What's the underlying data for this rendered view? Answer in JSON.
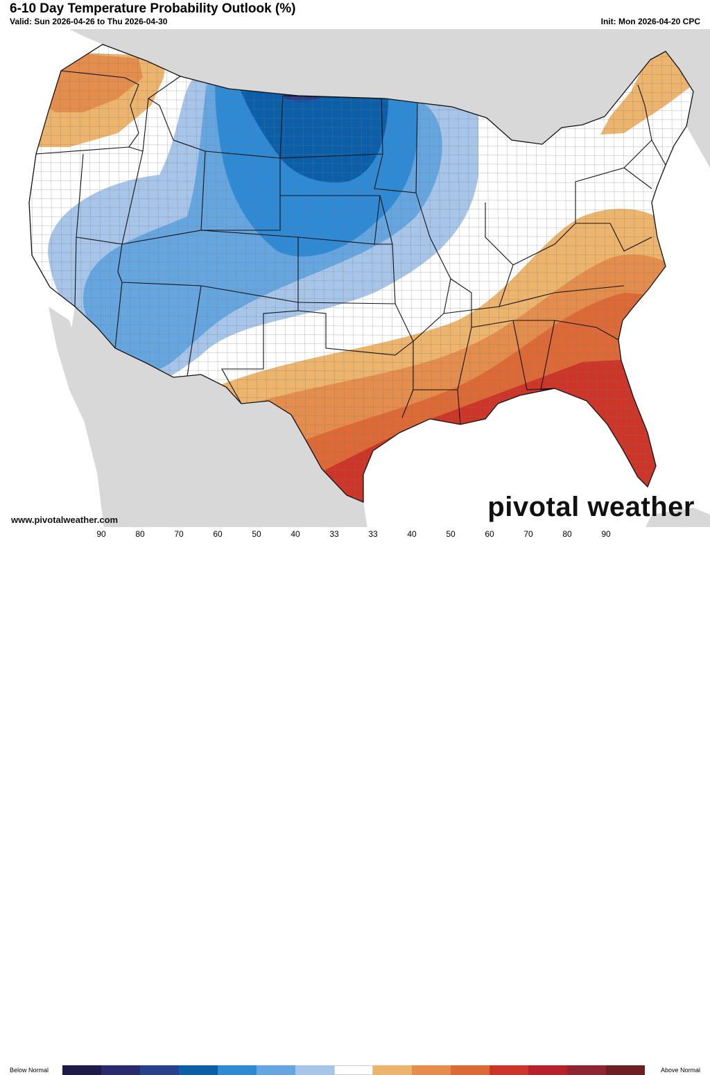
{
  "header": {
    "title": "6-10 Day Temperature Probability Outlook (%)",
    "valid": "Valid: Sun 2026-04-26 to Thu 2026-04-30",
    "init": "Init: Mon 2026-04-20 CPC"
  },
  "footer": {
    "website": "www.pivotalweather.com",
    "brand": "pivotal weather"
  },
  "legend": {
    "left_label": "Below Normal",
    "right_label": "Above Normal",
    "ticks": [
      "90",
      "80",
      "70",
      "60",
      "50",
      "40",
      "33",
      "33",
      "40",
      "50",
      "60",
      "70",
      "80",
      "90"
    ],
    "colors": [
      "#1e1a4a",
      "#2a2a70",
      "#27418c",
      "#0a5fa8",
      "#2f8ad6",
      "#66a6e0",
      "#a7c5e9",
      "#ffffff",
      "#ecb46c",
      "#e48d4c",
      "#dd6a36",
      "#cc3527",
      "#b8212b",
      "#8f2530",
      "#6e1f24"
    ]
  },
  "colors": {
    "land": "#ffffff",
    "ocean": "#ffffff",
    "neighbor_land": "#d8d8d8",
    "lakes": "#d0d0d0",
    "borders": "#111111"
  }
}
